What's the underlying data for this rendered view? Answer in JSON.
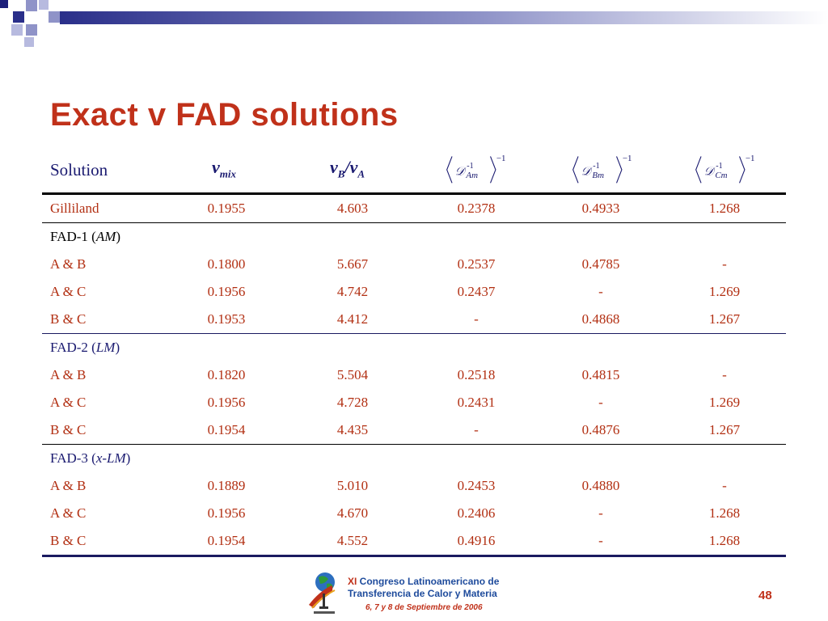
{
  "title": "Exact v FAD solutions",
  "header": {
    "solution": "Solution",
    "col_mix": "ν",
    "col_mix_sub": "mix",
    "col_ratio": "ν",
    "col_ratio_sub1": "B",
    "col_ratio_slash": "/",
    "col_ratio2": "ν",
    "col_ratio_sub2": "A",
    "d_symbol": "𝒟",
    "d_sup": "-1",
    "d_am_sub": "Am",
    "d_bm_sub": "Bm",
    "d_cm_sub": "Cm",
    "outer_sup": "−1"
  },
  "rows": [
    {
      "label": "Gilliland",
      "v1": "0.1955",
      "v2": "4.603",
      "v3": "0.2378",
      "v4": "0.4933",
      "v5": "1.268"
    },
    {
      "section": "FAD-1 (",
      "section_it": "AM",
      "section_end": ")"
    },
    {
      "label": "A & B",
      "v1": "0.1800",
      "v2": "5.667",
      "v3": "0.2537",
      "v4": "0.4785",
      "v5": "-"
    },
    {
      "label": "A & C",
      "v1": "0.1956",
      "v2": "4.742",
      "v3": "0.2437",
      "v4": "-",
      "v5": "1.269"
    },
    {
      "label": "B & C",
      "v1": "0.1953",
      "v2": "4.412",
      "v3": "-",
      "v4": "0.4868",
      "v5": "1.267"
    },
    {
      "section": "FAD-2 (",
      "section_it": "LM",
      "section_end": ")"
    },
    {
      "label": "A & B",
      "v1": "0.1820",
      "v2": "5.504",
      "v3": "0.2518",
      "v4": "0.4815",
      "v5": "-"
    },
    {
      "label": "A & C",
      "v1": "0.1956",
      "v2": "4.728",
      "v3": "0.2431",
      "v4": "-",
      "v5": "1.269"
    },
    {
      "label": "B & C",
      "v1": "0.1954",
      "v2": "4.435",
      "v3": "-",
      "v4": "0.4876",
      "v5": "1.267"
    },
    {
      "section": "FAD-3 (",
      "section_it": "x-LM",
      "section_end": ")"
    },
    {
      "label": "A & B",
      "v1": "0.1889",
      "v2": "5.010",
      "v3": "0.2453",
      "v4": "0.4880",
      "v5": "-"
    },
    {
      "label": "A & C",
      "v1": "0.1956",
      "v2": "4.670",
      "v3": "0.2406",
      "v4": "-",
      "v5": "1.268"
    },
    {
      "label": "B & C",
      "v1": "0.1954",
      "v2": "4.552",
      "v3": "0.4916",
      "v4": "-",
      "v5": "1.268"
    }
  ],
  "footer": {
    "line1_xi": "XI",
    "line1": " Congreso Latinoamericano de",
    "line2": "Transferencia de Calor y Materia",
    "date": "6, 7 y 8 de Septiembre de 2006",
    "page": "48"
  },
  "colors": {
    "title": "#c0311a",
    "table_text": "#1a1a70",
    "accent_blue": "#1e4b9c"
  }
}
